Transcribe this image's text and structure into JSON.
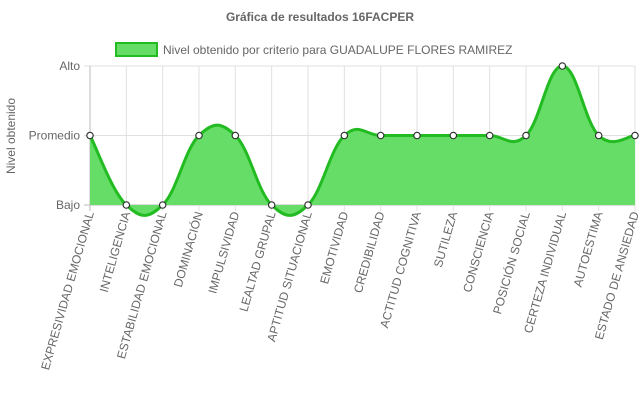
{
  "chart_data": {
    "type": "area",
    "title": "Gráfica de resultados 16FACPER",
    "ylabel": "Nivel obtenido",
    "xlabel": "",
    "y_levels": [
      "Bajo",
      "Promedio",
      "Alto"
    ],
    "ylim": [
      0,
      2
    ],
    "grid": true,
    "legend_position": "top",
    "categories": [
      "EXPRESIVIDAD EMOCIONAL",
      "INTELIGENCIA",
      "ESTABILIDAD EMOCIONAL",
      "DOMINACIÓN",
      "IMPULSIVIDAD",
      "LEALTAD GRUPAL",
      "APTITUD SITUACIONAL",
      "EMOTIVIDAD",
      "CREDIBILIDAD",
      "ACTITUD COGNITIVA",
      "SUTILEZA",
      "CONSCIENCIA",
      "POSICIÓN SOCIAL",
      "CERTEZA INDIVIDUAL",
      "AUTOESTIMA",
      "ESTADO DE ANSIEDAD"
    ],
    "series": [
      {
        "name": "Nivel obtenido por criterio para GUADALUPE FLORES RAMIREZ",
        "values": [
          1,
          0,
          0,
          1,
          1,
          0,
          0,
          1,
          1,
          1,
          1,
          1,
          1,
          2,
          1,
          1
        ],
        "fill_color": "#66dd66",
        "line_color": "#22bb22"
      }
    ]
  }
}
